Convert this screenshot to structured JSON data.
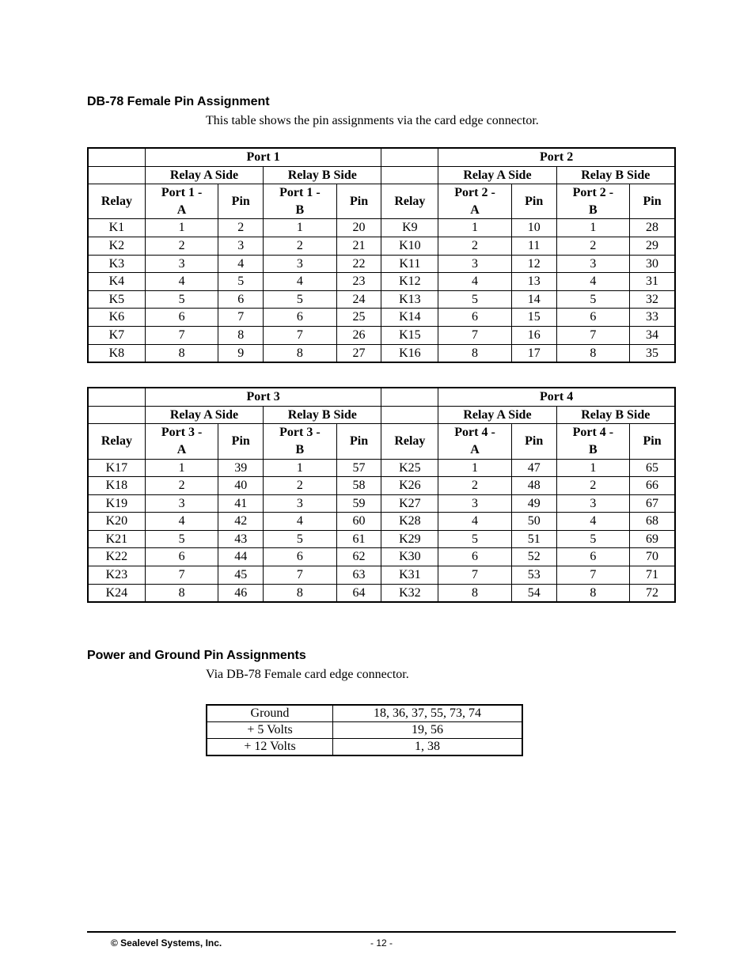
{
  "section1_heading": "DB-78 Female Pin Assignment",
  "section1_intro": "This table shows the pin assignments via the card edge connector.",
  "section2_heading": "Power and Ground Pin Assignments",
  "section2_intro": "Via DB-78 Female card edge connector.",
  "footer_copyright": "© Sealevel Systems, Inc.",
  "footer_page": "- 12 -",
  "table1": {
    "port_left": "Port 1",
    "port_right": "Port 2",
    "relay_a_side": "Relay A Side",
    "relay_b_side": "Relay B Side",
    "col_relay": "Relay",
    "col_pin": "Pin",
    "col_portA_L1": "Port 1 -",
    "col_portA_L2": "A",
    "col_portB_L1": "Port 1 -",
    "col_portB_L2": "B",
    "col_portA_R_L1": "Port 2 -",
    "col_portA_R_L2": "A",
    "col_portB_R_L1": "Port 2 -",
    "col_portB_R_L2": "B",
    "rows": [
      [
        "K1",
        "1",
        "2",
        "1",
        "20",
        "K9",
        "1",
        "10",
        "1",
        "28"
      ],
      [
        "K2",
        "2",
        "3",
        "2",
        "21",
        "K10",
        "2",
        "11",
        "2",
        "29"
      ],
      [
        "K3",
        "3",
        "4",
        "3",
        "22",
        "K11",
        "3",
        "12",
        "3",
        "30"
      ],
      [
        "K4",
        "4",
        "5",
        "4",
        "23",
        "K12",
        "4",
        "13",
        "4",
        "31"
      ],
      [
        "K5",
        "5",
        "6",
        "5",
        "24",
        "K13",
        "5",
        "14",
        "5",
        "32"
      ],
      [
        "K6",
        "6",
        "7",
        "6",
        "25",
        "K14",
        "6",
        "15",
        "6",
        "33"
      ],
      [
        "K7",
        "7",
        "8",
        "7",
        "26",
        "K15",
        "7",
        "16",
        "7",
        "34"
      ],
      [
        "K8",
        "8",
        "9",
        "8",
        "27",
        "K16",
        "8",
        "17",
        "8",
        "35"
      ]
    ]
  },
  "table2": {
    "port_left": "Port 3",
    "port_right": "Port 4",
    "relay_a_side": "Relay A Side",
    "relay_b_side": "Relay B Side",
    "col_relay": "Relay",
    "col_pin": "Pin",
    "col_portA_L1": "Port 3 -",
    "col_portA_L2": "A",
    "col_portB_L1": "Port 3 -",
    "col_portB_L2": "B",
    "col_portA_R_L1": "Port 4 -",
    "col_portA_R_L2": "A",
    "col_portB_R_L1": "Port 4 -",
    "col_portB_R_L2": "B",
    "rows": [
      [
        "K17",
        "1",
        "39",
        "1",
        "57",
        "K25",
        "1",
        "47",
        "1",
        "65"
      ],
      [
        "K18",
        "2",
        "40",
        "2",
        "58",
        "K26",
        "2",
        "48",
        "2",
        "66"
      ],
      [
        "K19",
        "3",
        "41",
        "3",
        "59",
        "K27",
        "3",
        "49",
        "3",
        "67"
      ],
      [
        "K20",
        "4",
        "42",
        "4",
        "60",
        "K28",
        "4",
        "50",
        "4",
        "68"
      ],
      [
        "K21",
        "5",
        "43",
        "5",
        "61",
        "K29",
        "5",
        "51",
        "5",
        "69"
      ],
      [
        "K22",
        "6",
        "44",
        "6",
        "62",
        "K30",
        "6",
        "52",
        "6",
        "70"
      ],
      [
        "K23",
        "7",
        "45",
        "7",
        "63",
        "K31",
        "7",
        "53",
        "7",
        "71"
      ],
      [
        "K24",
        "8",
        "46",
        "8",
        "64",
        "K32",
        "8",
        "54",
        "8",
        "72"
      ]
    ]
  },
  "power_table": {
    "rows": [
      [
        "Ground",
        "18, 36, 37, 55, 73, 74"
      ],
      [
        "+ 5 Volts",
        "19, 56"
      ],
      [
        "+ 12 Volts",
        "1, 38"
      ]
    ]
  },
  "style": {
    "border_color": "#000000",
    "heading_font": "Verdana",
    "body_font": "Times New Roman",
    "heading_fontsize": 16,
    "body_fontsize": 16,
    "footer_fontsize": 12
  }
}
